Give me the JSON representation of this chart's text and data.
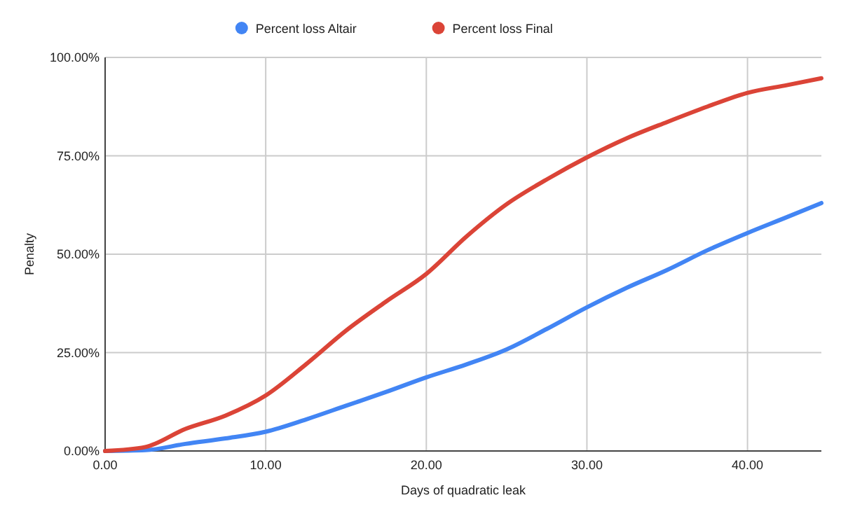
{
  "chart_data": {
    "type": "line",
    "xlabel": "Days of quadratic leak",
    "ylabel": "Penalty",
    "x": [
      0,
      2.5,
      5,
      7.5,
      10,
      12.5,
      15,
      17.5,
      20,
      22.5,
      25,
      27.5,
      30,
      32.5,
      35,
      37.5,
      40,
      42.5,
      44.6
    ],
    "series": [
      {
        "name": "Percent loss Altair",
        "color": "#4285f4",
        "values": [
          0,
          0.2,
          1.8,
          3.2,
          4.9,
          8,
          11.5,
          15,
          18.7,
          22,
          25.8,
          31,
          36.5,
          41.5,
          46,
          51,
          55.4,
          59.5,
          63
        ]
      },
      {
        "name": "Percent loss Final",
        "color": "#db4437",
        "values": [
          0,
          1,
          5.6,
          9,
          14.1,
          22,
          30.6,
          38,
          45,
          54.5,
          62.7,
          69,
          74.6,
          79.5,
          83.6,
          87.5,
          91,
          93,
          94.7
        ]
      }
    ],
    "xlim": [
      0,
      44.6
    ],
    "ylim": [
      0,
      100
    ],
    "xticks": [
      {
        "value": 0,
        "label": "0.00"
      },
      {
        "value": 10,
        "label": "10.00"
      },
      {
        "value": 20,
        "label": "20.00"
      },
      {
        "value": 30,
        "label": "30.00"
      },
      {
        "value": 40,
        "label": "40.00"
      }
    ],
    "yticks": [
      {
        "value": 0,
        "label": "0.00%"
      },
      {
        "value": 25,
        "label": "25.00%"
      },
      {
        "value": 50,
        "label": "50.00%"
      },
      {
        "value": 75,
        "label": "75.00%"
      },
      {
        "value": 100,
        "label": "100.00%"
      }
    ],
    "grid": true,
    "legend": "top",
    "marker": "none",
    "line_style": "solid"
  }
}
